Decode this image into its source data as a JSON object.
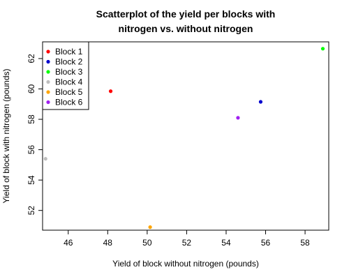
{
  "chart_data": {
    "type": "scatter",
    "title": "Scatterplot of the yield per blocks with nitrogen vs. without nitrogen",
    "title_lines": [
      "Scatterplot of the yield per blocks with",
      "nitrogen vs. without nitrogen"
    ],
    "xlabel": "Yield of block without nitrogen (pounds)",
    "ylabel": "Yield of block with nitrogen (pounds)",
    "xlim": [
      44.7,
      59.2
    ],
    "ylim": [
      50.7,
      63.1
    ],
    "x_ticks": [
      46,
      48,
      50,
      52,
      54,
      56,
      58
    ],
    "y_ticks": [
      52,
      54,
      56,
      58,
      60,
      62
    ],
    "grid": false,
    "legend_position": "top-left",
    "series": [
      {
        "name": "Block 1",
        "color": "#ff0000",
        "x": 48.15,
        "y": 59.85
      },
      {
        "name": "Block 2",
        "color": "#0000cd",
        "x": 55.75,
        "y": 59.15
      },
      {
        "name": "Block 3",
        "color": "#00ff00",
        "x": 58.9,
        "y": 62.65
      },
      {
        "name": "Block 4",
        "color": "#bebebe",
        "x": 44.85,
        "y": 55.4
      },
      {
        "name": "Block 5",
        "color": "#ffa500",
        "x": 50.15,
        "y": 50.9
      },
      {
        "name": "Block 6",
        "color": "#a020f0",
        "x": 54.6,
        "y": 58.1
      }
    ]
  }
}
